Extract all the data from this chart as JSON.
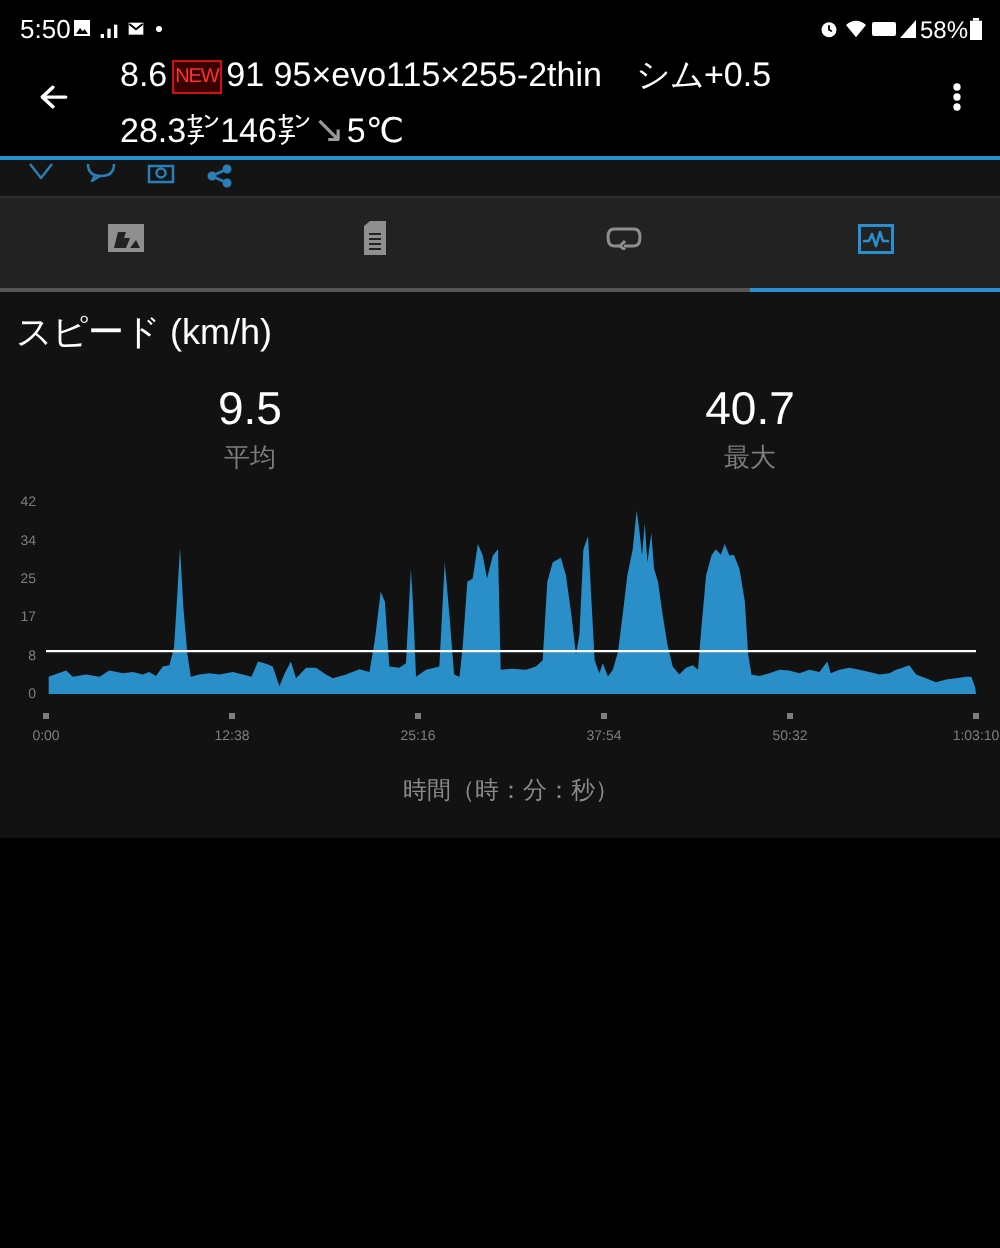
{
  "chart_data": {
    "type": "area",
    "title": "スピード (km/h)",
    "xlabel": "時間（時：分：秒）",
    "x": [
      10,
      82,
      109,
      163,
      218,
      258,
      313,
      354,
      394,
      421,
      448,
      476,
      503,
      522,
      535,
      546,
      560,
      576,
      590,
      625,
      666,
      707,
      761,
      802,
      837,
      864,
      897,
      924,
      951,
      973,
      998,
      1019,
      1060,
      1100,
      1141,
      1169,
      1223,
      1277,
      1318,
      1340,
      1364,
      1381,
      1399,
      1440,
      1467,
      1487,
      1495,
      1508,
      1549,
      1603,
      1625,
      1644,
      1663,
      1685,
      1698,
      1717,
      1739,
      1760,
      1780,
      1797,
      1821,
      1842,
      1853,
      1902,
      1956,
      1997,
      2024,
      2043,
      2065,
      2098,
      2119,
      2141,
      2160,
      2174,
      2190,
      2209,
      2223,
      2236,
      2255,
      2269,
      2290,
      2310,
      2331,
      2350,
      2369,
      2391,
      2407,
      2418,
      2429,
      2440,
      2451,
      2467,
      2478,
      2494,
      2513,
      2532,
      2554,
      2581,
      2608,
      2636,
      2657,
      2671,
      2690,
      2712,
      2730,
      2750,
      2766,
      2785,
      2803,
      2826,
      2848,
      2861,
      2875,
      2907,
      2948,
      2989,
      3029,
      3070,
      3111,
      3152,
      3184,
      3198,
      3233,
      3274,
      3315,
      3356,
      3396,
      3437,
      3464,
      3491,
      3518,
      3546,
      3586,
      3627,
      3668,
      3709,
      3749,
      3771,
      3787,
      3790
    ],
    "values": [
      3.8,
      5.2,
      3.8,
      4.3,
      3.8,
      5.2,
      4.6,
      4.9,
      4.3,
      4.9,
      4,
      6.1,
      6.4,
      10.4,
      22,
      32.5,
      19.1,
      9,
      3.8,
      4.3,
      4.6,
      4.3,
      4.9,
      4.3,
      3.8,
      7.2,
      6.7,
      6.1,
      1.7,
      4.6,
      7.2,
      3.5,
      5.8,
      5.8,
      4.3,
      3.5,
      4.3,
      5.5,
      4.9,
      11.9,
      22.7,
      20.5,
      6.1,
      5.8,
      6.8,
      27.8,
      20.5,
      3.8,
      5.4,
      6.1,
      29.2,
      17.6,
      4.3,
      3.8,
      10.4,
      24.9,
      25.6,
      33.3,
      30.7,
      25.6,
      30.7,
      32.1,
      5.4,
      5.6,
      5.4,
      6.1,
      7.5,
      24.9,
      29.2,
      30.2,
      26.3,
      17.6,
      8.7,
      13.3,
      32.1,
      35,
      20.5,
      7.5,
      4.6,
      6.8,
      3.9,
      5.4,
      9.3,
      17.6,
      26.3,
      32.1,
      40.7,
      36.4,
      30.7,
      37.9,
      29.2,
      35.7,
      27.8,
      24.9,
      17.6,
      11.1,
      6.1,
      4.3,
      5.8,
      6.4,
      5.4,
      14.7,
      26.3,
      30.7,
      32.1,
      30.9,
      33.3,
      30.7,
      30.9,
      27.8,
      20.5,
      9,
      4.3,
      4,
      4.6,
      5.4,
      5.2,
      4.6,
      5.4,
      4.9,
      7.2,
      4.6,
      5.4,
      5.8,
      5.4,
      4.9,
      4.3,
      4.6,
      5.4,
      5.8,
      6.4,
      4.3,
      3.5,
      2.6,
      3.2,
      3.5,
      3.8,
      3.8,
      1.4,
      0
    ],
    "color": "#2a8fc8",
    "marker": "none",
    "xlim": [
      0,
      3790
    ],
    "xticks": [
      {
        "value": 0,
        "label": "0:00"
      },
      {
        "value": 758,
        "label": "12:38"
      },
      {
        "value": 1516,
        "label": "25:16"
      },
      {
        "value": 2274,
        "label": "37:54"
      },
      {
        "value": 3032,
        "label": "50:32"
      },
      {
        "value": 3790,
        "label": "1:03:10"
      }
    ],
    "ylim": [
      0,
      42.5
    ],
    "yticks": [
      0,
      {
        "value": 8.5,
        "label": "8"
      },
      17,
      {
        "value": 25.5,
        "label": "25"
      },
      34,
      {
        "value": 42.5,
        "label": "42"
      }
    ],
    "ref_lines": [
      {
        "axis": "y",
        "value": 9.5,
        "color": "#ffffff"
      }
    ],
    "annotations": [
      "5:50",
      "58%",
      "8.6",
      "NEW",
      "91 95×evo115×255-2thin　シム+0.5",
      "28.3㌢146㌢",
      "↘",
      "5℃",
      "9.5",
      "平均",
      "40.7",
      "最大"
    ]
  }
}
